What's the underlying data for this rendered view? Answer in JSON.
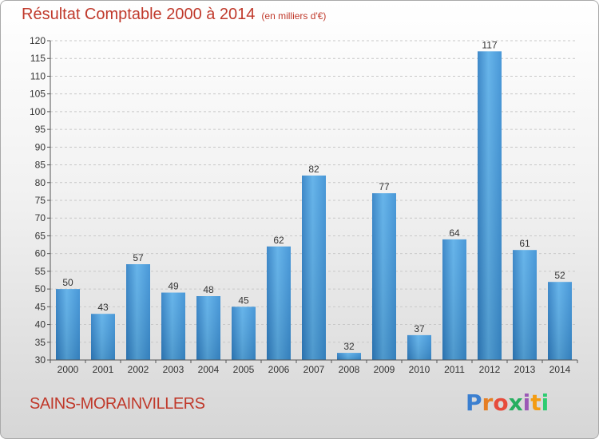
{
  "chart_data": {
    "type": "bar",
    "title": "Résultat Comptable 2000 à 2014",
    "subtitle": "(en milliers d'€)",
    "categories": [
      "2000",
      "2001",
      "2002",
      "2003",
      "2004",
      "2005",
      "2006",
      "2007",
      "2008",
      "2009",
      "2010",
      "2011",
      "2012",
      "2013",
      "2014"
    ],
    "values": [
      50,
      43,
      57,
      49,
      48,
      45,
      62,
      82,
      32,
      77,
      37,
      64,
      117,
      61,
      52
    ],
    "ylim": [
      30,
      120
    ],
    "yticks": [
      30,
      35,
      40,
      45,
      50,
      55,
      60,
      65,
      70,
      75,
      80,
      85,
      90,
      95,
      100,
      105,
      110,
      115,
      120
    ],
    "grid": true,
    "bar_color": "#3a8fd4",
    "title_color": "#c0392b"
  },
  "footer": {
    "town": "SAINS-MORAINVILLERS",
    "logo_letters": [
      "P",
      "r",
      "o",
      "x",
      "i",
      "t",
      "i"
    ],
    "logo_colors": [
      "#3b7fd0",
      "#e67e22",
      "#e74c3c",
      "#27ae60",
      "#9b59b6",
      "#f39c12",
      "#2ecc71"
    ]
  }
}
